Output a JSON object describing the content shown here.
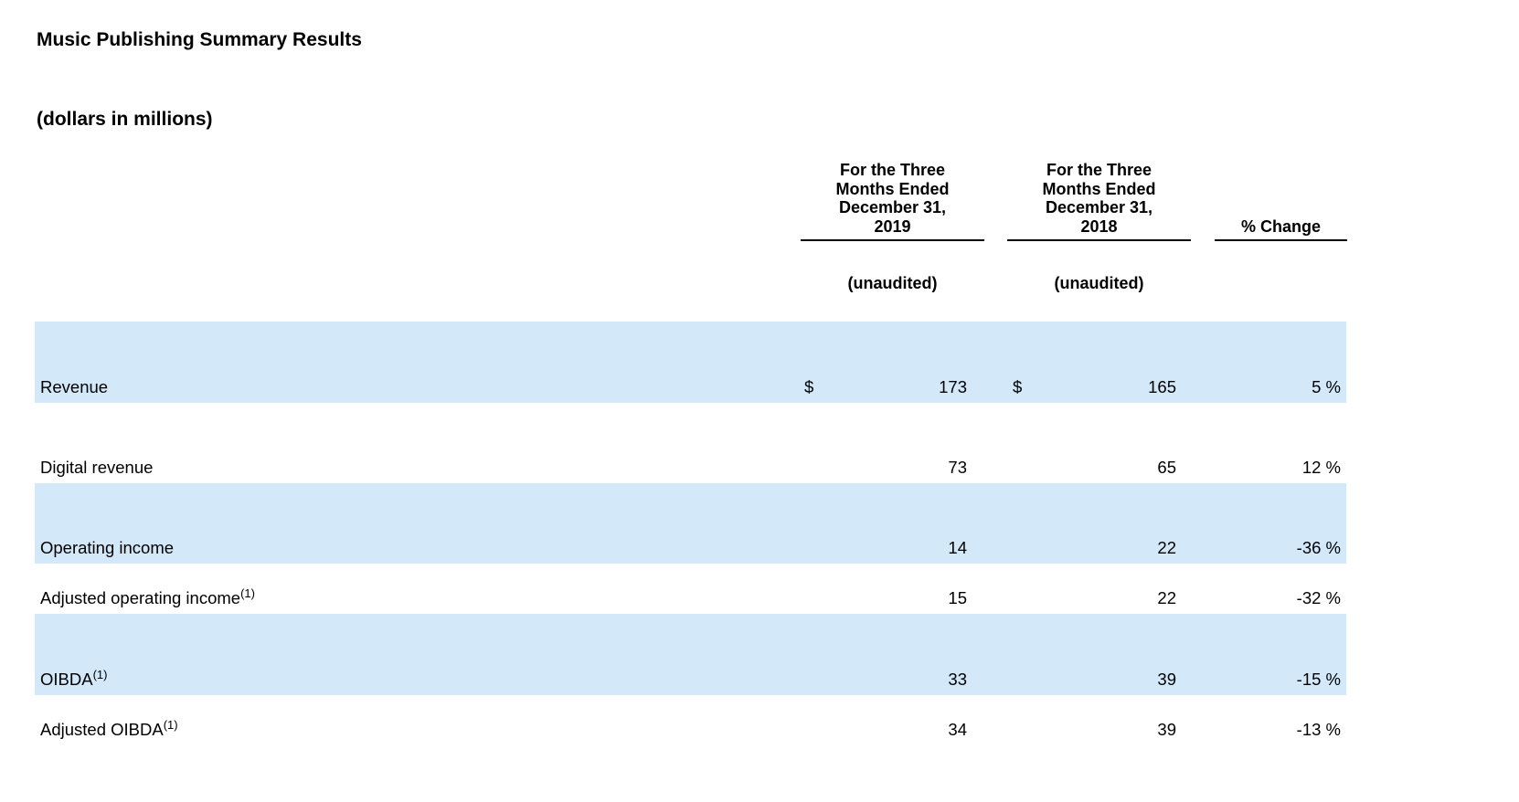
{
  "document": {
    "title": "Music Publishing Summary Results",
    "subtitle": "(dollars in millions)"
  },
  "table": {
    "header": {
      "col2019": {
        "lines": [
          "For the Three",
          "Months Ended",
          "December 31,",
          "2019"
        ],
        "note": "(unaudited)"
      },
      "col2018": {
        "lines": [
          "For the Three",
          "Months Ended",
          "December 31,",
          "2018"
        ],
        "note": "(unaudited)"
      },
      "colchange": {
        "label": "% Change"
      }
    },
    "colors": {
      "row_shade": "#d3e9fa"
    },
    "rows": [
      {
        "label": "Revenue",
        "sup": "",
        "cur1": "$",
        "v2019": "173",
        "cur2": "$",
        "v2018": "165",
        "change": "5 %"
      },
      {
        "label": "Digital revenue",
        "sup": "",
        "cur1": "",
        "v2019": "73",
        "cur2": "",
        "v2018": "65",
        "change": "12 %"
      },
      {
        "label": "Operating income",
        "sup": "",
        "cur1": "",
        "v2019": "14",
        "cur2": "",
        "v2018": "22",
        "change": "-36 %"
      },
      {
        "label": "Adjusted operating income",
        "sup": "(1)",
        "cur1": "",
        "v2019": "15",
        "cur2": "",
        "v2018": "22",
        "change": "-32 %"
      },
      {
        "label": "OIBDA",
        "sup": "(1)",
        "cur1": "",
        "v2019": "33",
        "cur2": "",
        "v2018": "39",
        "change": "-15 %"
      },
      {
        "label": "Adjusted OIBDA",
        "sup": "(1)",
        "cur1": "",
        "v2019": "34",
        "cur2": "",
        "v2018": "39",
        "change": "-13 %"
      }
    ]
  }
}
